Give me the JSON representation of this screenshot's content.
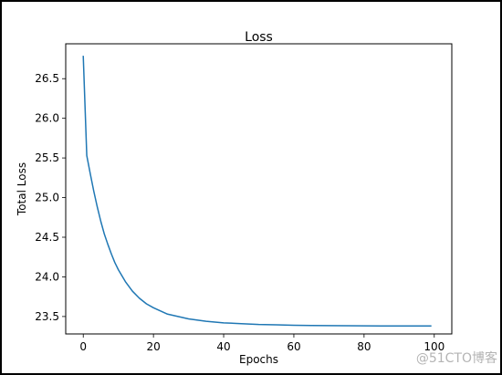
{
  "chart_data": {
    "type": "line",
    "title": "Loss",
    "xlabel": "Epochs",
    "ylabel": "Total Loss",
    "xlim": [
      -5,
      105
    ],
    "ylim": [
      23.28,
      26.94
    ],
    "xticks": [
      0,
      20,
      40,
      60,
      80,
      100
    ],
    "yticks": [
      23.5,
      24.0,
      24.5,
      25.0,
      25.5,
      26.0,
      26.5
    ],
    "ytick_labels": [
      "23.5",
      "24.0",
      "24.5",
      "25.0",
      "25.5",
      "26.0",
      "26.5"
    ],
    "grid": false,
    "series": [
      {
        "color": "#1f77b4",
        "x": [
          0,
          1,
          2,
          3,
          4,
          5,
          6,
          7,
          8,
          9,
          10,
          12,
          14,
          16,
          18,
          20,
          22,
          24,
          26,
          28,
          30,
          35,
          40,
          45,
          50,
          55,
          60,
          65,
          70,
          75,
          80,
          85,
          90,
          95,
          99
        ],
        "y": [
          26.78,
          25.53,
          25.3,
          25.08,
          24.88,
          24.7,
          24.54,
          24.41,
          24.29,
          24.18,
          24.09,
          23.94,
          23.82,
          23.73,
          23.66,
          23.61,
          23.57,
          23.53,
          23.51,
          23.49,
          23.47,
          23.44,
          23.42,
          23.41,
          23.4,
          23.395,
          23.39,
          23.387,
          23.385,
          23.383,
          23.382,
          23.381,
          23.38,
          23.38,
          23.38
        ]
      }
    ]
  },
  "watermark": "@51CTO博客"
}
